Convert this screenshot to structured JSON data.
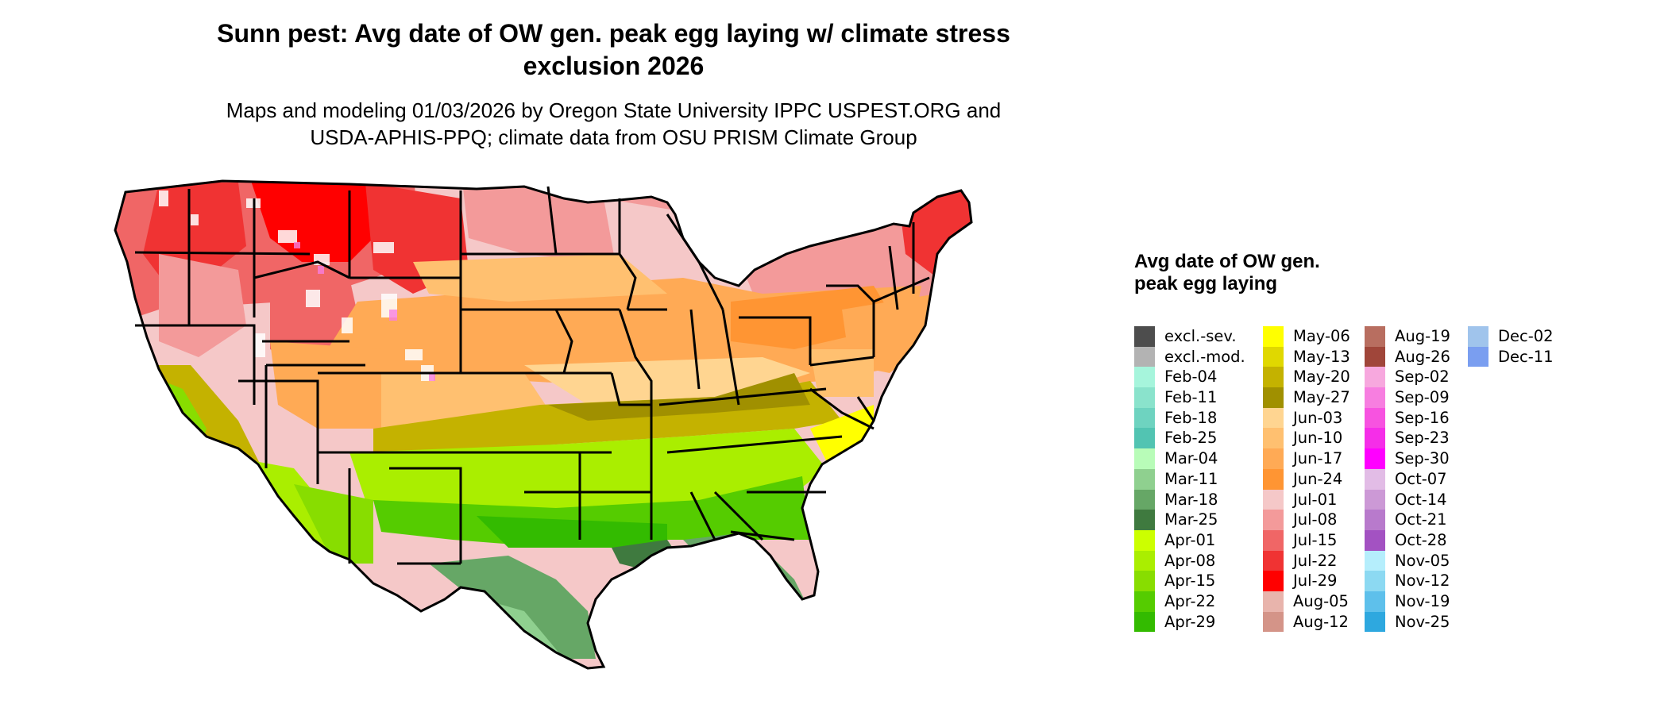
{
  "title": "Sunn pest: Avg date of OW gen. peak egg laying w/ climate stress exclusion 2026",
  "title_line1": "Sunn pest: Avg date of OW gen. peak egg laying w/ climate stress",
  "title_line2": "exclusion 2026",
  "subtitle_line1": "Maps and modeling 01/03/2026 by Oregon State University IPPC USPEST.ORG and",
  "subtitle_line2": "USDA-APHIS-PPQ; climate data from OSU PRISM Climate Group",
  "legend": {
    "title": "Avg date of OW gen. peak egg laying",
    "columns": [
      [
        {
          "label": "excl.-sev.",
          "color": "#4d4d4d"
        },
        {
          "label": "excl.-mod.",
          "color": "#b3b3b3"
        },
        {
          "label": "Feb-04",
          "color": "#a6f5dc"
        },
        {
          "label": "Feb-11",
          "color": "#8ae3cc"
        },
        {
          "label": "Feb-18",
          "color": "#6ed3c0"
        },
        {
          "label": "Feb-25",
          "color": "#52c4b2"
        },
        {
          "label": "Mar-04",
          "color": "#b8fcb8"
        },
        {
          "label": "Mar-11",
          "color": "#8fd08f"
        },
        {
          "label": "Mar-18",
          "color": "#66a766"
        },
        {
          "label": "Mar-25",
          "color": "#3f7a3f"
        },
        {
          "label": "Apr-01",
          "color": "#ccff00"
        },
        {
          "label": "Apr-08",
          "color": "#aaee00"
        },
        {
          "label": "Apr-15",
          "color": "#88dd00"
        },
        {
          "label": "Apr-22",
          "color": "#55cc00"
        },
        {
          "label": "Apr-29",
          "color": "#33bb00"
        }
      ],
      [
        {
          "label": "May-06",
          "color": "#ffff00"
        },
        {
          "label": "May-13",
          "color": "#e0d800"
        },
        {
          "label": "May-20",
          "color": "#c4b200"
        },
        {
          "label": "May-27",
          "color": "#a09000"
        },
        {
          "label": "Jun-03",
          "color": "#ffd591"
        },
        {
          "label": "Jun-10",
          "color": "#ffc070"
        },
        {
          "label": "Jun-17",
          "color": "#ffaa55"
        },
        {
          "label": "Jun-24",
          "color": "#ff9533"
        },
        {
          "label": "Jul-01",
          "color": "#f5c8c8"
        },
        {
          "label": "Jul-08",
          "color": "#f39a9a"
        },
        {
          "label": "Jul-15",
          "color": "#f06666"
        },
        {
          "label": "Jul-22",
          "color": "#f03333"
        },
        {
          "label": "Jul-29",
          "color": "#ff0000"
        },
        {
          "label": "Aug-05",
          "color": "#e8b4ac"
        },
        {
          "label": "Aug-12",
          "color": "#d49488"
        }
      ],
      [
        {
          "label": "Aug-19",
          "color": "#b86e60"
        },
        {
          "label": "Aug-26",
          "color": "#a0463a"
        },
        {
          "label": "Sep-02",
          "color": "#f7a8de"
        },
        {
          "label": "Sep-09",
          "color": "#f77ee0"
        },
        {
          "label": "Sep-16",
          "color": "#f753e0"
        },
        {
          "label": "Sep-23",
          "color": "#f52ee8"
        },
        {
          "label": "Sep-30",
          "color": "#ff00ff"
        },
        {
          "label": "Oct-07",
          "color": "#e2bce6"
        },
        {
          "label": "Oct-14",
          "color": "#cc99d6"
        },
        {
          "label": "Oct-21",
          "color": "#b87acc"
        },
        {
          "label": "Oct-28",
          "color": "#a352c2"
        },
        {
          "label": "Nov-05",
          "color": "#b5eefc"
        },
        {
          "label": "Nov-12",
          "color": "#8cd9f2"
        },
        {
          "label": "Nov-19",
          "color": "#5ec0eb"
        },
        {
          "label": "Nov-25",
          "color": "#2ea8df"
        }
      ],
      [
        {
          "label": "Dec-02",
          "color": "#a0c4ec"
        },
        {
          "label": "Dec-11",
          "color": "#7a9ef0"
        }
      ]
    ]
  }
}
